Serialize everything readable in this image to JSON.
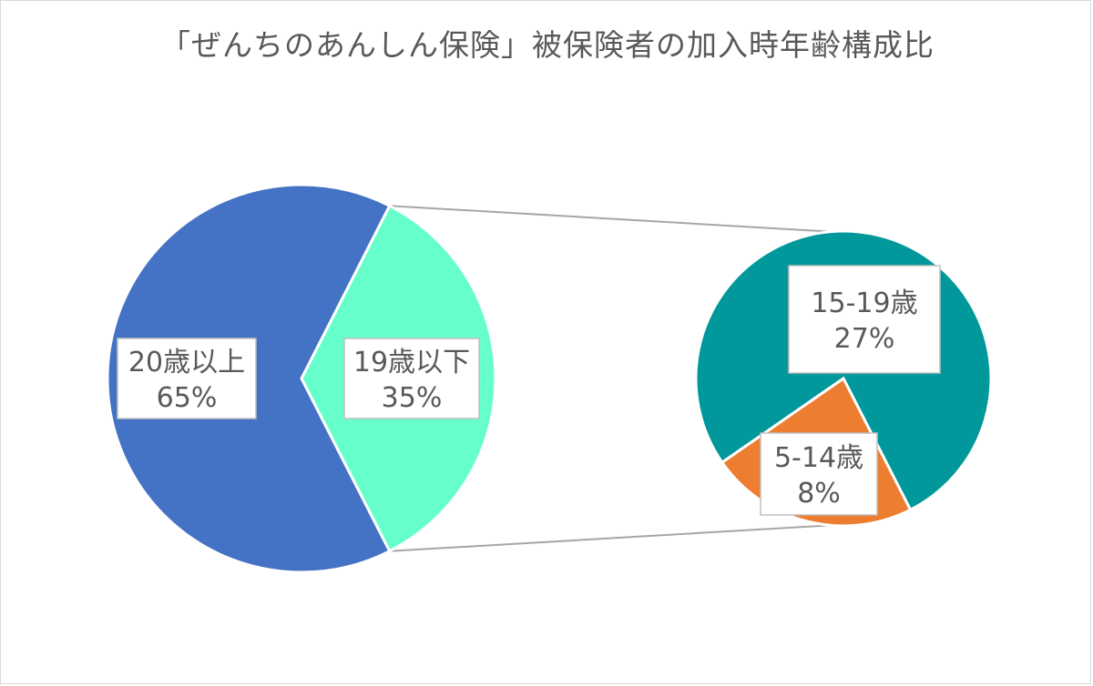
{
  "chart_data": {
    "type": "pie",
    "title": "「ぜんちのあんしん保険」被保険者の加入時年齢構成比",
    "main_pie": {
      "slices": [
        {
          "label": "20歳以上",
          "value": 65,
          "display": "65%",
          "color": "#4472C4"
        },
        {
          "label": "19歳以下",
          "value": 35,
          "display": "35%",
          "color": "#66FFCC"
        }
      ]
    },
    "sub_pie": {
      "parent": "19歳以下",
      "slices": [
        {
          "label": "15-19歳",
          "value": 27,
          "display": "27%",
          "color": "#00989A"
        },
        {
          "label": "5-14歳",
          "value": 8,
          "display": "8%",
          "color": "#ED7D31"
        }
      ]
    }
  }
}
